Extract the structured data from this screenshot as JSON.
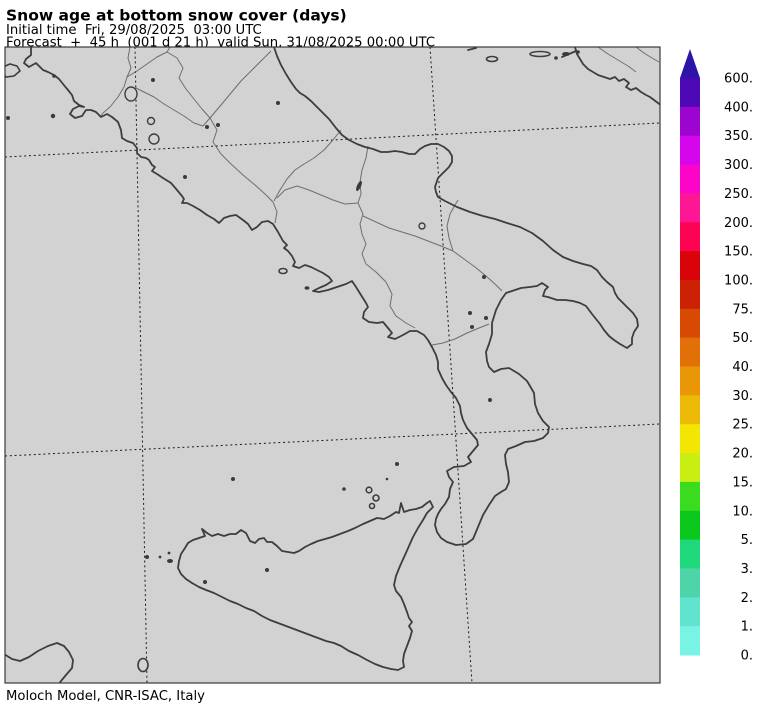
{
  "header": {
    "title": "Snow age at bottom snow cover (days)",
    "initial_time_line": "Initial time  Fri, 29/08/2025  03:00 UTC",
    "forecast_line": "Forecast  +  45 h  (001 d 21 h)  valid Sun, 31/08/2025 00:00 UTC"
  },
  "footer": {
    "caption": "Moloch Model, CNR-ISAC, Italy"
  },
  "colorbar": {
    "unit_values_days_top_to_bottom": [
      "600.",
      "400.",
      "350.",
      "300.",
      "250.",
      "200.",
      "150.",
      "100.",
      "75.",
      "50.",
      "40.",
      "30.",
      "25.",
      "20.",
      "15.",
      "10.",
      "5.",
      "3.",
      "2.",
      "1.",
      "0."
    ],
    "segment_colors_top_to_bottom": [
      "#4c09b5",
      "#9c05cf",
      "#d505ec",
      "#fc05c8",
      "#fd1795",
      "#fd0353",
      "#d90409",
      "#cd2103",
      "#d84a04",
      "#e17006",
      "#e99707",
      "#ecb907",
      "#f2e602",
      "#c8ee12",
      "#3bdc20",
      "#0cc81c",
      "#1fd87c",
      "#4fd4a9",
      "#60e4cd",
      "#78f3e5"
    ],
    "arrow_color": "#2e15a8"
  },
  "map": {
    "land_color": "#d2d2d2",
    "coast_color": "#3d3d3d",
    "region_border_color": "#6e6e6e",
    "graticule_color": "#1a1a1a"
  }
}
